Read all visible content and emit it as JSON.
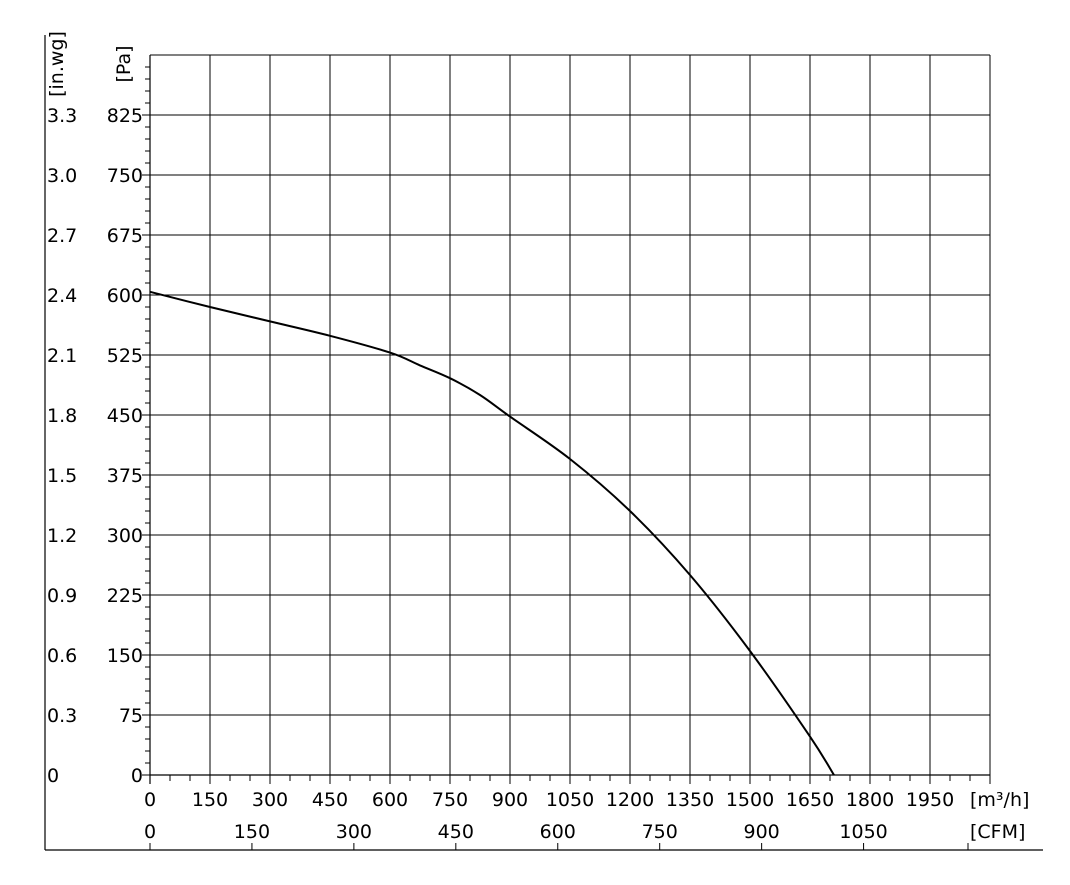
{
  "chart_data": {
    "type": "line",
    "title": "",
    "x_axis": {
      "unit_label": "[m³/h]",
      "range": [
        0,
        2100
      ],
      "ticks": [
        "0",
        "150",
        "300",
        "450",
        "600",
        "750",
        "900",
        "1050",
        "1200",
        "1350",
        "1500",
        "1650",
        "1800",
        "1950"
      ]
    },
    "x2_axis": {
      "unit_label": "[CFM]",
      "range": [
        0,
        1236
      ],
      "ticks": [
        "0",
        "150",
        "300",
        "450",
        "600",
        "750",
        "900",
        "1050"
      ]
    },
    "y_axis": {
      "unit_label": "[Pa]",
      "range": [
        0,
        825
      ],
      "ticks": [
        "0",
        "75",
        "150",
        "225",
        "300",
        "375",
        "450",
        "525",
        "600",
        "675",
        "750",
        "825"
      ]
    },
    "y2_axis": {
      "unit_label": "[in.wg]",
      "ticks": [
        "0",
        "0.3",
        "0.6",
        "0.9",
        "1.2",
        "1.5",
        "1.8",
        "2.1",
        "2.4",
        "2.7",
        "3.0",
        "3.3"
      ]
    },
    "grid": true,
    "series": [
      {
        "x": [
          0,
          150,
          300,
          450,
          600,
          675,
          750,
          825,
          900,
          1050,
          1200,
          1350,
          1500,
          1650,
          1710
        ],
        "y": [
          604,
          585,
          567,
          549,
          528,
          512,
          496,
          475,
          448,
          395,
          330,
          250,
          155,
          48,
          0
        ]
      }
    ]
  }
}
